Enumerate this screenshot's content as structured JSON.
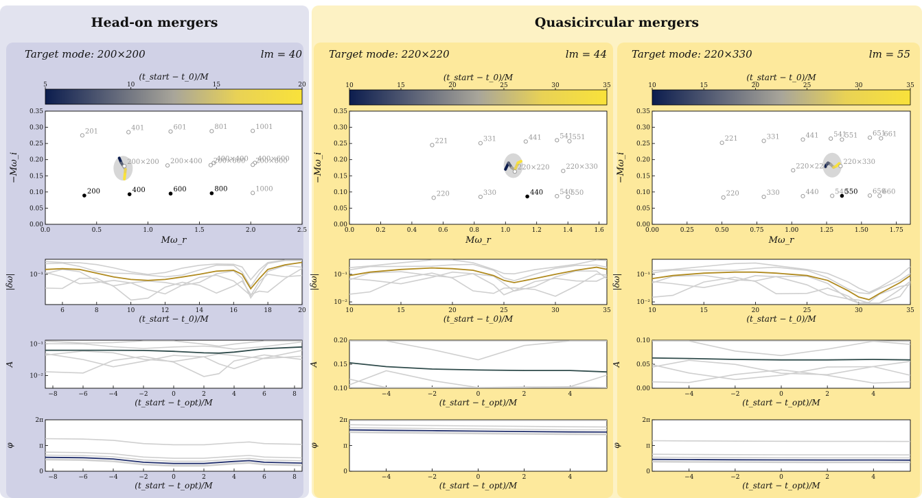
{
  "headers": {
    "head_on": "Head-on mergers",
    "quasi": "Quasicircular mergers"
  },
  "colors": {
    "outer_head": "#e2e3ef",
    "inner_head": "#d0d1e6",
    "outer_quasi": "#fdf2c4",
    "inner_quasi": "#fde99c",
    "mode_gray": "#9a9a9a",
    "target_black": "#000000",
    "err_line": "#b08a1e",
    "amp_line": "#2e4a4a",
    "phase_line": "#1f2d6b",
    "faint": "#cfcfcf",
    "cmap": [
      "#0c1d4e",
      "#5b6277",
      "#a8a59a",
      "#e9d255",
      "#f9e23a"
    ]
  },
  "chart_data": [
    {
      "id": "head",
      "type": "scatter",
      "target_label": "Target mode: 200×200",
      "lm_label": "lm = 40",
      "colorbar": {
        "label": "(t_start − t_0)/M",
        "range": [
          5,
          20
        ],
        "ticks": [
          "5",
          "10",
          "15",
          "20"
        ]
      },
      "scatter": {
        "xlabel": "Mω_r",
        "ylabel": "−Mω_i",
        "xlim": [
          0,
          2.5
        ],
        "ylim": [
          0,
          0.35
        ],
        "xticks": [
          "0.0",
          "0.5",
          "1.0",
          "1.5",
          "2.0",
          "2.5"
        ],
        "yticks": [
          "0.00",
          "0.05",
          "0.10",
          "0.15",
          "0.20",
          "0.25",
          "0.30",
          "0.35"
        ],
        "modes_open": [
          {
            "label": "201",
            "x": 0.36,
            "y": 0.275
          },
          {
            "label": "401",
            "x": 0.81,
            "y": 0.285
          },
          {
            "label": "601",
            "x": 1.22,
            "y": 0.287
          },
          {
            "label": "801",
            "x": 1.62,
            "y": 0.288
          },
          {
            "label": "1001",
            "x": 2.02,
            "y": 0.289
          },
          {
            "label": "200×200",
            "x": 0.77,
            "y": 0.18
          },
          {
            "label": "200×400",
            "x": 1.19,
            "y": 0.182
          },
          {
            "label": "400×400",
            "x": 1.64,
            "y": 0.19
          },
          {
            "label": "200×600",
            "x": 1.61,
            "y": 0.183
          },
          {
            "label": "400×600",
            "x": 2.04,
            "y": 0.19
          },
          {
            "label": "200×800",
            "x": 2.02,
            "y": 0.184
          },
          {
            "label": "1000",
            "x": 2.02,
            "y": 0.097
          }
        ],
        "modes_filled": [
          {
            "label": "200",
            "x": 0.38,
            "y": 0.089
          },
          {
            "label": "400",
            "x": 0.82,
            "y": 0.093
          },
          {
            "label": "600",
            "x": 1.22,
            "y": 0.095
          },
          {
            "label": "800",
            "x": 1.62,
            "y": 0.096
          }
        ],
        "trajectory": [
          [
            0.72,
            0.205
          ],
          [
            0.74,
            0.19
          ],
          [
            0.76,
            0.18
          ],
          [
            0.78,
            0.17
          ],
          [
            0.775,
            0.155
          ],
          [
            0.77,
            0.14
          ]
        ]
      },
      "error": {
        "ylabel": "|δω|",
        "xlabel": "(t_start − t_0)/M",
        "xlim": [
          5,
          20
        ],
        "log_ticks": [
          "10^-1"
        ],
        "xticks": [
          "6",
          "8",
          "10",
          "12",
          "14",
          "16",
          "18",
          "20"
        ],
        "x": [
          5,
          6,
          7,
          8,
          9,
          10,
          11,
          12,
          13,
          14,
          15,
          16,
          16.5,
          17,
          17.5,
          18,
          19,
          20
        ],
        "y": [
          0.15,
          0.16,
          0.15,
          0.11,
          0.08,
          0.065,
          0.06,
          0.065,
          0.08,
          0.1,
          0.13,
          0.14,
          0.1,
          0.03,
          0.07,
          0.15,
          0.22,
          0.27
        ]
      },
      "amplitude": {
        "ylabel": "A",
        "xlabel": "(t_start − t_opt)/M",
        "xlim": [
          -8.5,
          8.5
        ],
        "log_ticks": [
          "10^-2",
          "10^-1"
        ],
        "xticks": [
          "−8",
          "−6",
          "−4",
          "−2",
          "0",
          "2",
          "4",
          "6",
          "8"
        ],
        "x": [
          -8.5,
          -6,
          -4,
          -2,
          0,
          2,
          3,
          4,
          6,
          8.5
        ],
        "y": [
          0.063,
          0.063,
          0.063,
          0.062,
          0.058,
          0.052,
          0.051,
          0.055,
          0.07,
          0.08
        ]
      },
      "phase": {
        "ylabel": "φ",
        "xlabel": "(t_start − t_opt)/M",
        "xlim": [
          -8.5,
          8.5
        ],
        "yticks": [
          "0",
          "π",
          "2π"
        ],
        "xticks": [
          "−8",
          "−6",
          "−4",
          "−2",
          "0",
          "2",
          "4",
          "6",
          "8"
        ],
        "x": [
          -8.5,
          -6,
          -4,
          -2,
          0,
          2,
          4,
          5,
          6,
          8.5
        ],
        "y": [
          1.7,
          1.65,
          1.5,
          1.1,
          0.95,
          0.95,
          1.2,
          1.3,
          1.1,
          1.0
        ]
      }
    },
    {
      "id": "q44",
      "type": "scatter",
      "target_label": "Target mode: 220×220",
      "lm_label": "lm = 44",
      "colorbar": {
        "label": "(t_start − t_0)/M",
        "range": [
          10,
          35
        ],
        "ticks": [
          "10",
          "15",
          "20",
          "25",
          "30",
          "35"
        ]
      },
      "scatter": {
        "xlabel": "Mω_r",
        "ylabel": "−Mω_i",
        "xlim": [
          0,
          1.65
        ],
        "ylim": [
          0,
          0.35
        ],
        "xticks": [
          "0.0",
          "0.2",
          "0.4",
          "0.6",
          "0.8",
          "1.0",
          "1.2",
          "1.4",
          "1.6"
        ],
        "yticks": [
          "0.00",
          "0.05",
          "0.10",
          "0.15",
          "0.20",
          "0.25",
          "0.30",
          "0.35"
        ],
        "modes_open": [
          {
            "label": "221",
            "x": 0.53,
            "y": 0.245
          },
          {
            "label": "331",
            "x": 0.84,
            "y": 0.251
          },
          {
            "label": "441",
            "x": 1.13,
            "y": 0.256
          },
          {
            "label": "541",
            "x": 1.33,
            "y": 0.26
          },
          {
            "label": "551",
            "x": 1.41,
            "y": 0.257
          },
          {
            "label": "220×220",
            "x": 1.06,
            "y": 0.163
          },
          {
            "label": "220×330",
            "x": 1.37,
            "y": 0.165
          },
          {
            "label": "220",
            "x": 0.54,
            "y": 0.082
          },
          {
            "label": "330",
            "x": 0.84,
            "y": 0.085
          },
          {
            "label": "540",
            "x": 1.33,
            "y": 0.087
          },
          {
            "label": "550",
            "x": 1.4,
            "y": 0.085
          }
        ],
        "modes_filled": [
          {
            "label": "440",
            "x": 1.14,
            "y": 0.086
          }
        ],
        "trajectory": [
          [
            1.0,
            0.17
          ],
          [
            1.02,
            0.19
          ],
          [
            1.04,
            0.175
          ],
          [
            1.06,
            0.168
          ],
          [
            1.08,
            0.19
          ],
          [
            1.1,
            0.195
          ]
        ]
      },
      "error": {
        "ylabel": "|δω|",
        "xlabel": "(t_start − t_0)/M",
        "xlim": [
          10,
          35
        ],
        "log_ticks": [
          "10^-2",
          "10^-1"
        ],
        "xticks": [
          "10",
          "15",
          "20",
          "25",
          "30",
          "35"
        ],
        "x": [
          10,
          12,
          15,
          18,
          20,
          22,
          24,
          25,
          26,
          28,
          30,
          32,
          34,
          35
        ],
        "y": [
          0.09,
          0.12,
          0.15,
          0.17,
          0.16,
          0.14,
          0.09,
          0.06,
          0.05,
          0.07,
          0.1,
          0.14,
          0.18,
          0.15
        ]
      },
      "amplitude": {
        "ylabel": "A",
        "xlabel": "(t_start − t_opt)/M",
        "xlim": [
          -5.6,
          5.6
        ],
        "yticks": [
          "0.10",
          "0.15",
          "0.20"
        ],
        "ylim": [
          0.1,
          0.2
        ],
        "xticks": [
          "−4",
          "−2",
          "0",
          "2",
          "4"
        ],
        "x": [
          -5.6,
          -4,
          -2,
          0,
          2,
          4,
          5.6
        ],
        "y": [
          0.153,
          0.145,
          0.14,
          0.138,
          0.137,
          0.137,
          0.134
        ]
      },
      "phase": {
        "ylabel": "φ",
        "xlabel": "(t_start − t_opt)/M",
        "xlim": [
          -5.6,
          5.6
        ],
        "yticks": [
          "0",
          "π",
          "2π"
        ],
        "xticks": [
          "−4",
          "−2",
          "0",
          "2",
          "4"
        ],
        "x": [
          -5.6,
          -4,
          -2,
          0,
          2,
          4,
          5.6
        ],
        "y": [
          5.05,
          5.0,
          4.95,
          4.9,
          4.85,
          4.8,
          4.78
        ]
      }
    },
    {
      "id": "q55",
      "type": "scatter",
      "target_label": "Target mode: 220×330",
      "lm_label": "lm = 55",
      "colorbar": {
        "label": "(t_start − t_0)/M",
        "range": [
          10,
          35
        ],
        "ticks": [
          "10",
          "15",
          "20",
          "25",
          "30",
          "35"
        ]
      },
      "scatter": {
        "xlabel": "Mω_r",
        "ylabel": "−Mω_i",
        "xlim": [
          0,
          1.85
        ],
        "ylim": [
          0,
          0.35
        ],
        "xticks": [
          "0.00",
          "0.25",
          "0.50",
          "0.75",
          "1.00",
          "1.25",
          "1.50",
          "1.75"
        ],
        "yticks": [
          "0.00",
          "0.05",
          "0.10",
          "0.15",
          "0.20",
          "0.25",
          "0.30",
          "0.35"
        ],
        "modes_open": [
          {
            "label": "221",
            "x": 0.5,
            "y": 0.252
          },
          {
            "label": "331",
            "x": 0.8,
            "y": 0.258
          },
          {
            "label": "441",
            "x": 1.08,
            "y": 0.262
          },
          {
            "label": "541",
            "x": 1.28,
            "y": 0.265
          },
          {
            "label": "551",
            "x": 1.36,
            "y": 0.262
          },
          {
            "label": "651",
            "x": 1.56,
            "y": 0.268
          },
          {
            "label": "661",
            "x": 1.64,
            "y": 0.266
          },
          {
            "label": "220×220",
            "x": 1.01,
            "y": 0.167
          },
          {
            "label": "220×330",
            "x": 1.35,
            "y": 0.18
          },
          {
            "label": "220",
            "x": 0.51,
            "y": 0.083
          },
          {
            "label": "330",
            "x": 0.8,
            "y": 0.085
          },
          {
            "label": "440",
            "x": 1.08,
            "y": 0.087
          },
          {
            "label": "540",
            "x": 1.29,
            "y": 0.088
          },
          {
            "label": "650",
            "x": 1.56,
            "y": 0.089
          },
          {
            "label": "660",
            "x": 1.63,
            "y": 0.088
          }
        ],
        "modes_filled": [
          {
            "label": "550",
            "x": 1.36,
            "y": 0.088
          }
        ],
        "trajectory": [
          [
            1.24,
            0.178
          ],
          [
            1.26,
            0.19
          ],
          [
            1.28,
            0.185
          ],
          [
            1.3,
            0.176
          ],
          [
            1.32,
            0.18
          ],
          [
            1.34,
            0.188
          ]
        ]
      },
      "error": {
        "ylabel": "|δω|",
        "xlabel": "(t_start − t_0)/M",
        "xlim": [
          10,
          35
        ],
        "log_ticks": [
          "10^-2",
          "10^-1"
        ],
        "xticks": [
          "10",
          "15",
          "20",
          "25",
          "30",
          "35"
        ],
        "x": [
          10,
          12,
          15,
          18,
          20,
          22,
          25,
          27,
          29,
          30,
          31,
          32,
          34,
          35
        ],
        "y": [
          0.07,
          0.09,
          0.11,
          0.12,
          0.12,
          0.11,
          0.09,
          0.06,
          0.025,
          0.015,
          0.012,
          0.02,
          0.05,
          0.09
        ]
      },
      "amplitude": {
        "ylabel": "A",
        "xlabel": "(t_start − t_opt)/M",
        "xlim": [
          -5.6,
          5.6
        ],
        "yticks": [
          "0.00",
          "0.05",
          "0.10"
        ],
        "ylim": [
          0,
          0.1
        ],
        "xticks": [
          "−4",
          "−2",
          "0",
          "2",
          "4"
        ],
        "x": [
          -5.6,
          -4,
          -2,
          0,
          2,
          4,
          5.6
        ],
        "y": [
          0.063,
          0.062,
          0.06,
          0.059,
          0.059,
          0.06,
          0.059
        ]
      },
      "phase": {
        "ylabel": "φ",
        "xlabel": "(t_start − t_opt)/M",
        "xlim": [
          -5.6,
          5.6
        ],
        "yticks": [
          "0",
          "π",
          "2π"
        ],
        "xticks": [
          "−4",
          "−2",
          "0",
          "2",
          "4"
        ],
        "x": [
          -5.6,
          -4,
          -2,
          0,
          2,
          4,
          5.6
        ],
        "y": [
          1.45,
          1.42,
          1.4,
          1.38,
          1.37,
          1.37,
          1.36
        ]
      }
    }
  ]
}
